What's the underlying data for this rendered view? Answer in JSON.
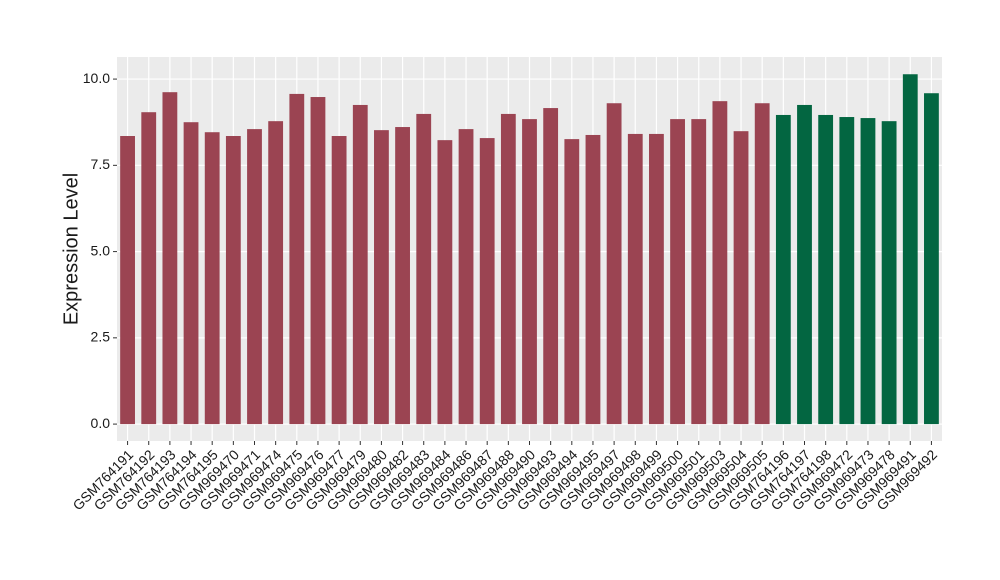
{
  "chart_data": {
    "type": "bar",
    "y_label": "Expression Level",
    "categories": [
      "GSM764191",
      "GSM764192",
      "GSM764193",
      "GSM764194",
      "GSM764195",
      "GSM969470",
      "GSM969471",
      "GSM969474",
      "GSM969475",
      "GSM969476",
      "GSM969477",
      "GSM969479",
      "GSM969480",
      "GSM969482",
      "GSM969483",
      "GSM969484",
      "GSM969486",
      "GSM969487",
      "GSM969488",
      "GSM969490",
      "GSM969493",
      "GSM969494",
      "GSM969495",
      "GSM969497",
      "GSM969498",
      "GSM969499",
      "GSM969500",
      "GSM969501",
      "GSM969503",
      "GSM969504",
      "GSM969505",
      "GSM764196",
      "GSM764197",
      "GSM764198",
      "GSM969472",
      "GSM969473",
      "GSM969478",
      "GSM969491",
      "GSM969492"
    ],
    "values": [
      8.35,
      9.04,
      9.62,
      8.75,
      8.46,
      8.35,
      8.55,
      8.78,
      9.57,
      9.48,
      8.35,
      9.25,
      8.52,
      8.61,
      8.99,
      8.23,
      8.55,
      8.29,
      8.99,
      8.84,
      9.16,
      8.26,
      8.38,
      9.3,
      8.41,
      8.41,
      8.84,
      8.84,
      9.36,
      8.49,
      9.3,
      8.96,
      9.25,
      8.96,
      8.9,
      8.87,
      8.78,
      10.14,
      9.59
    ],
    "colors": [
      "#9b4452",
      "#9b4452",
      "#9b4452",
      "#9b4452",
      "#9b4452",
      "#9b4452",
      "#9b4452",
      "#9b4452",
      "#9b4452",
      "#9b4452",
      "#9b4452",
      "#9b4452",
      "#9b4452",
      "#9b4452",
      "#9b4452",
      "#9b4452",
      "#9b4452",
      "#9b4452",
      "#9b4452",
      "#9b4452",
      "#9b4452",
      "#9b4452",
      "#9b4452",
      "#9b4452",
      "#9b4452",
      "#9b4452",
      "#9b4452",
      "#9b4452",
      "#9b4452",
      "#9b4452",
      "#9b4452",
      "#036641",
      "#036641",
      "#036641",
      "#036641",
      "#036641",
      "#036641",
      "#036641",
      "#036641"
    ],
    "ylim": [
      -0.49,
      10.64
    ],
    "yticks": [
      {
        "value": 0,
        "label": "0.0"
      },
      {
        "value": 2.5,
        "label": "2.5"
      },
      {
        "value": 5,
        "label": "5.0"
      },
      {
        "value": 7.5,
        "label": "7.5"
      },
      {
        "value": 10,
        "label": "10.0"
      }
    ],
    "grid": true
  }
}
